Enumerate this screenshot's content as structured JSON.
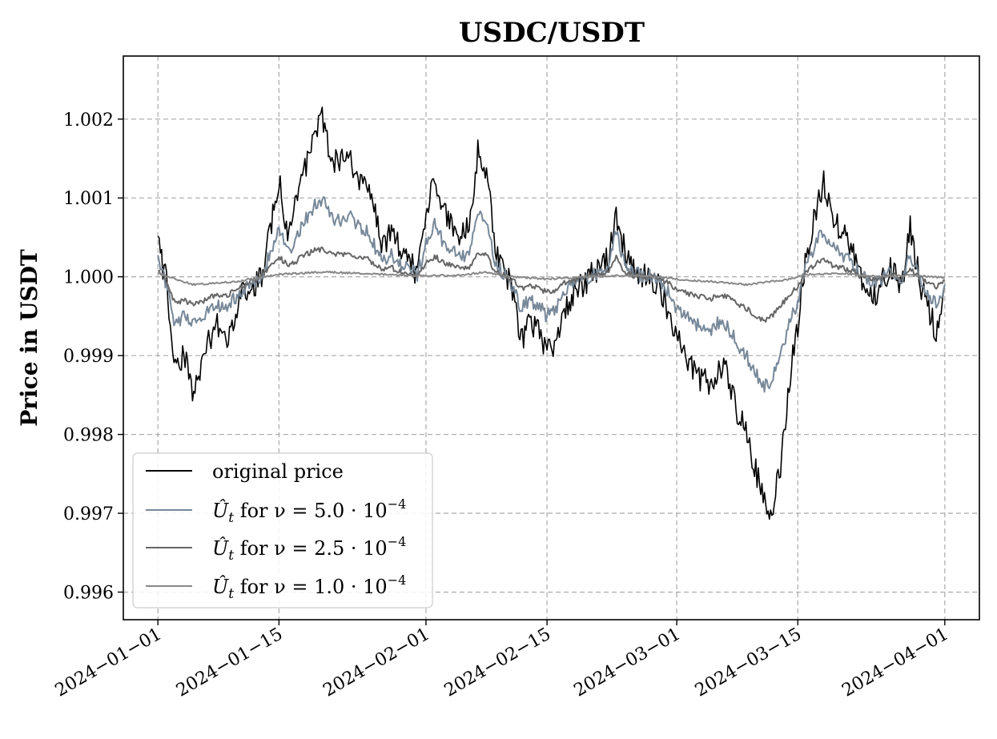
{
  "chart_data": {
    "type": "line",
    "title": "USDC/USDT",
    "xlabel": "",
    "ylabel": "Price in USDT",
    "xlim": [
      "2023-12-28",
      "2024-04-05"
    ],
    "ylim": [
      0.99565,
      1.0028
    ],
    "grid": true,
    "legend_position": "lower-left",
    "x_ticks": [
      "2024-01-01",
      "2024-01-15",
      "2024-02-01",
      "2024-02-15",
      "2024-03-01",
      "2024-03-15",
      "2024-04-01"
    ],
    "x_tick_labels": [
      "2024−01−01",
      "2024−01−15",
      "2024−02−01",
      "2024−02−15",
      "2024−03−01",
      "2024−03−15",
      "2024−04−01"
    ],
    "y_ticks": [
      0.996,
      0.997,
      0.998,
      0.999,
      1.0,
      1.001,
      1.002
    ],
    "y_tick_labels": [
      "0.996",
      "0.997",
      "0.998",
      "0.999",
      "1.000",
      "1.001",
      "1.002"
    ],
    "series": [
      {
        "name": "original price",
        "color": "#000000",
        "x": [
          "2024-01-01",
          "2024-01-02",
          "2024-01-03",
          "2024-01-04",
          "2024-01-05",
          "2024-01-06",
          "2024-01-07",
          "2024-01-08",
          "2024-01-09",
          "2024-01-10",
          "2024-01-11",
          "2024-01-12",
          "2024-01-13",
          "2024-01-14",
          "2024-01-15",
          "2024-01-16",
          "2024-01-17",
          "2024-01-18",
          "2024-01-19",
          "2024-01-20",
          "2024-01-21",
          "2024-01-22",
          "2024-01-23",
          "2024-01-24",
          "2024-01-25",
          "2024-01-26",
          "2024-01-27",
          "2024-01-28",
          "2024-01-29",
          "2024-01-30",
          "2024-01-31",
          "2024-02-01",
          "2024-02-02",
          "2024-02-03",
          "2024-02-04",
          "2024-02-05",
          "2024-02-06",
          "2024-02-07",
          "2024-02-08",
          "2024-02-09",
          "2024-02-10",
          "2024-02-11",
          "2024-02-12",
          "2024-02-13",
          "2024-02-14",
          "2024-02-15",
          "2024-02-16",
          "2024-02-17",
          "2024-02-18",
          "2024-02-19",
          "2024-02-20",
          "2024-02-21",
          "2024-02-22",
          "2024-02-23",
          "2024-02-24",
          "2024-02-25",
          "2024-02-26",
          "2024-02-27",
          "2024-02-28",
          "2024-02-29",
          "2024-03-01",
          "2024-03-02",
          "2024-03-03",
          "2024-03-04",
          "2024-03-05",
          "2024-03-06",
          "2024-03-07",
          "2024-03-08",
          "2024-03-09",
          "2024-03-10",
          "2024-03-11",
          "2024-03-12",
          "2024-03-13",
          "2024-03-14",
          "2024-03-15",
          "2024-03-16",
          "2024-03-17",
          "2024-03-18",
          "2024-03-19",
          "2024-03-20",
          "2024-03-21",
          "2024-03-22",
          "2024-03-23",
          "2024-03-24",
          "2024-03-25",
          "2024-03-26",
          "2024-03-27",
          "2024-03-28",
          "2024-03-29",
          "2024-03-30",
          "2024-03-31",
          "2024-04-01"
        ],
        "values": [
          1.0004,
          0.99995,
          0.9988,
          0.999,
          0.9986,
          0.9988,
          0.9992,
          0.9994,
          0.9992,
          0.9996,
          0.9998,
          0.9999,
          1.0,
          1.0006,
          1.0012,
          1.0006,
          1.001,
          1.0014,
          1.0018,
          1.002,
          1.0015,
          1.0014,
          1.0016,
          1.0013,
          1.0012,
          1.0008,
          1.0004,
          1.0006,
          1.0003,
          1.0002,
          1.00005,
          1.0008,
          1.0013,
          1.0009,
          1.0007,
          1.0005,
          1.0006,
          1.0016,
          1.0014,
          1.0003,
          1.0001,
          0.9998,
          0.9992,
          0.9994,
          0.9993,
          0.999,
          0.9992,
          0.9996,
          0.9998,
          0.9999,
          1.0,
          1.0001,
          1.0002,
          1.0008,
          1.0003,
          1.0001,
          1.00005,
          1.0,
          0.9999,
          0.9996,
          0.9992,
          0.999,
          0.9988,
          0.9987,
          0.9986,
          0.9989,
          0.9987,
          0.9983,
          0.998,
          0.9976,
          0.9972,
          0.997,
          0.9976,
          0.9987,
          0.9994,
          1.0003,
          1.0008,
          1.0012,
          1.0007,
          1.0006,
          1.0004,
          1.0001,
          0.9999,
          0.9998,
          1.0,
          1.0001,
          0.9999,
          1.0006,
          1.0,
          0.9996,
          0.9993,
          0.9999
        ]
      },
      {
        "name": "U_t for ν = 5.0·10⁻⁴",
        "label_lead": "Û",
        "label_sub": "t",
        "label_mid": " for ν = 5.0 · 10",
        "label_sup": "−4",
        "color": "#778899",
        "x": [
          "2024-01-01",
          "2024-01-02",
          "2024-01-03",
          "2024-01-04",
          "2024-01-05",
          "2024-01-06",
          "2024-01-07",
          "2024-01-08",
          "2024-01-09",
          "2024-01-10",
          "2024-01-11",
          "2024-01-12",
          "2024-01-13",
          "2024-01-14",
          "2024-01-15",
          "2024-01-16",
          "2024-01-17",
          "2024-01-18",
          "2024-01-19",
          "2024-01-20",
          "2024-01-21",
          "2024-01-22",
          "2024-01-23",
          "2024-01-24",
          "2024-01-25",
          "2024-01-26",
          "2024-01-27",
          "2024-01-28",
          "2024-01-29",
          "2024-01-30",
          "2024-01-31",
          "2024-02-01",
          "2024-02-02",
          "2024-02-03",
          "2024-02-04",
          "2024-02-05",
          "2024-02-06",
          "2024-02-07",
          "2024-02-08",
          "2024-02-09",
          "2024-02-10",
          "2024-02-11",
          "2024-02-12",
          "2024-02-13",
          "2024-02-14",
          "2024-02-15",
          "2024-02-16",
          "2024-02-17",
          "2024-02-18",
          "2024-02-19",
          "2024-02-20",
          "2024-02-21",
          "2024-02-22",
          "2024-02-23",
          "2024-02-24",
          "2024-02-25",
          "2024-02-26",
          "2024-02-27",
          "2024-02-28",
          "2024-02-29",
          "2024-03-01",
          "2024-03-02",
          "2024-03-03",
          "2024-03-04",
          "2024-03-05",
          "2024-03-06",
          "2024-03-07",
          "2024-03-08",
          "2024-03-09",
          "2024-03-10",
          "2024-03-11",
          "2024-03-12",
          "2024-03-13",
          "2024-03-14",
          "2024-03-15",
          "2024-03-16",
          "2024-03-17",
          "2024-03-18",
          "2024-03-19",
          "2024-03-20",
          "2024-03-21",
          "2024-03-22",
          "2024-03-23",
          "2024-03-24",
          "2024-03-25",
          "2024-03-26",
          "2024-03-27",
          "2024-03-28",
          "2024-03-29",
          "2024-03-30",
          "2024-03-31",
          "2024-04-01"
        ],
        "values": [
          1.0002,
          0.9999,
          0.9994,
          0.9995,
          0.9994,
          0.99945,
          0.9996,
          0.99965,
          0.9996,
          0.99975,
          0.99985,
          0.9999,
          1.0,
          1.0003,
          1.0006,
          1.0003,
          1.0005,
          1.0007,
          1.0009,
          1.001,
          1.00075,
          1.0007,
          1.0008,
          1.00065,
          1.0006,
          1.0004,
          1.0002,
          1.0003,
          1.00015,
          1.0001,
          1.00002,
          1.0004,
          1.00065,
          1.00045,
          1.00035,
          1.00025,
          1.0003,
          1.0008,
          1.0007,
          1.00015,
          1.00005,
          0.9999,
          0.9996,
          0.9997,
          0.99965,
          0.9995,
          0.9996,
          0.9998,
          0.9999,
          0.99995,
          1.0,
          1.00005,
          1.0001,
          1.0006,
          1.00015,
          1.00005,
          1.00002,
          1.0,
          0.99995,
          0.9998,
          0.9996,
          0.9995,
          0.9994,
          0.99935,
          0.9993,
          0.99945,
          0.99935,
          0.99915,
          0.999,
          0.9988,
          0.9986,
          0.9987,
          0.999,
          0.9994,
          0.9997,
          1.00015,
          1.0004,
          1.0006,
          1.00035,
          1.0003,
          1.0002,
          1.00005,
          0.99995,
          0.9999,
          1.0,
          1.00005,
          0.99995,
          1.0003,
          1.0,
          0.9998,
          0.99965,
          0.9999
        ]
      },
      {
        "name": "U_t for ν = 2.5·10⁻⁴",
        "label_lead": "Û",
        "label_sub": "t",
        "label_mid": " for ν = 2.5 · 10",
        "label_sup": "−4",
        "color": "#666666",
        "x": [
          "2024-01-01",
          "2024-01-02",
          "2024-01-03",
          "2024-01-04",
          "2024-01-05",
          "2024-01-06",
          "2024-01-07",
          "2024-01-08",
          "2024-01-09",
          "2024-01-10",
          "2024-01-11",
          "2024-01-12",
          "2024-01-13",
          "2024-01-14",
          "2024-01-15",
          "2024-01-16",
          "2024-01-17",
          "2024-01-18",
          "2024-01-19",
          "2024-01-20",
          "2024-01-21",
          "2024-01-22",
          "2024-01-23",
          "2024-01-24",
          "2024-01-25",
          "2024-01-26",
          "2024-01-27",
          "2024-01-28",
          "2024-01-29",
          "2024-01-30",
          "2024-01-31",
          "2024-02-01",
          "2024-02-02",
          "2024-02-03",
          "2024-02-04",
          "2024-02-05",
          "2024-02-06",
          "2024-02-07",
          "2024-02-08",
          "2024-02-09",
          "2024-02-10",
          "2024-02-11",
          "2024-02-12",
          "2024-02-13",
          "2024-02-14",
          "2024-02-15",
          "2024-02-16",
          "2024-02-17",
          "2024-02-18",
          "2024-02-19",
          "2024-02-20",
          "2024-02-21",
          "2024-02-22",
          "2024-02-23",
          "2024-02-24",
          "2024-02-25",
          "2024-02-26",
          "2024-02-27",
          "2024-02-28",
          "2024-02-29",
          "2024-03-01",
          "2024-03-02",
          "2024-03-03",
          "2024-03-04",
          "2024-03-05",
          "2024-03-06",
          "2024-03-07",
          "2024-03-08",
          "2024-03-09",
          "2024-03-10",
          "2024-03-11",
          "2024-03-12",
          "2024-03-13",
          "2024-03-14",
          "2024-03-15",
          "2024-03-16",
          "2024-03-17",
          "2024-03-18",
          "2024-03-19",
          "2024-03-20",
          "2024-03-21",
          "2024-03-22",
          "2024-03-23",
          "2024-03-24",
          "2024-03-25",
          "2024-03-26",
          "2024-03-27",
          "2024-03-28",
          "2024-03-29",
          "2024-03-30",
          "2024-03-31",
          "2024-04-01"
        ],
        "values": [
          1.0001,
          0.99995,
          0.99965,
          0.9997,
          0.99965,
          0.99968,
          0.99975,
          0.99978,
          0.99975,
          0.99985,
          0.9999,
          0.99995,
          1.0,
          1.00015,
          1.00025,
          1.00015,
          1.0002,
          1.00028,
          1.00033,
          1.00035,
          1.0003,
          1.00028,
          1.0003,
          1.00026,
          1.00024,
          1.00016,
          1.00008,
          1.00012,
          1.00006,
          1.00004,
          1.00001,
          1.00016,
          1.00026,
          1.00018,
          1.00014,
          1.0001,
          1.00012,
          1.00032,
          1.00028,
          1.00006,
          1.00002,
          0.99996,
          0.99985,
          0.99988,
          0.99986,
          0.9998,
          0.99984,
          0.99992,
          0.99996,
          0.99998,
          1.0,
          1.00002,
          1.00004,
          1.00024,
          1.00006,
          1.00002,
          1.00001,
          1.0,
          0.99998,
          0.99992,
          0.99985,
          0.9998,
          0.99976,
          0.99974,
          0.99972,
          0.99978,
          0.99974,
          0.99966,
          0.9996,
          0.99952,
          0.99944,
          0.9995,
          0.99962,
          0.99978,
          0.99988,
          1.00006,
          1.00016,
          1.00024,
          1.00014,
          1.00012,
          1.00008,
          1.00002,
          0.99998,
          0.99996,
          1.0,
          1.00002,
          0.99998,
          1.00012,
          1.0,
          0.99992,
          0.99986,
          0.99996
        ]
      },
      {
        "name": "U_t for ν = 1.0·10⁻⁴",
        "label_lead": "Û",
        "label_sub": "t",
        "label_mid": " for ν = 1.0 · 10",
        "label_sup": "−4",
        "color": "#888888",
        "x": [
          "2024-01-01",
          "2024-01-05",
          "2024-01-10",
          "2024-01-13",
          "2024-01-15",
          "2024-01-20",
          "2024-01-25",
          "2024-01-31",
          "2024-02-05",
          "2024-02-08",
          "2024-02-10",
          "2024-02-15",
          "2024-02-20",
          "2024-02-24",
          "2024-02-28",
          "2024-03-01",
          "2024-03-05",
          "2024-03-09",
          "2024-03-11",
          "2024-03-14",
          "2024-03-16",
          "2024-03-20",
          "2024-03-25",
          "2024-03-28",
          "2024-04-01"
        ],
        "values": [
          1.00005,
          0.9999,
          0.99994,
          0.99999,
          1.00003,
          1.00006,
          1.00004,
          1.00001,
          1.00002,
          1.00006,
          1.00001,
          0.99997,
          1.0,
          1.00002,
          1.0,
          0.99997,
          0.99994,
          0.9999,
          0.99993,
          0.99997,
          1.00003,
          1.00004,
          1.0,
          1.00002,
          0.99999
        ]
      }
    ]
  }
}
